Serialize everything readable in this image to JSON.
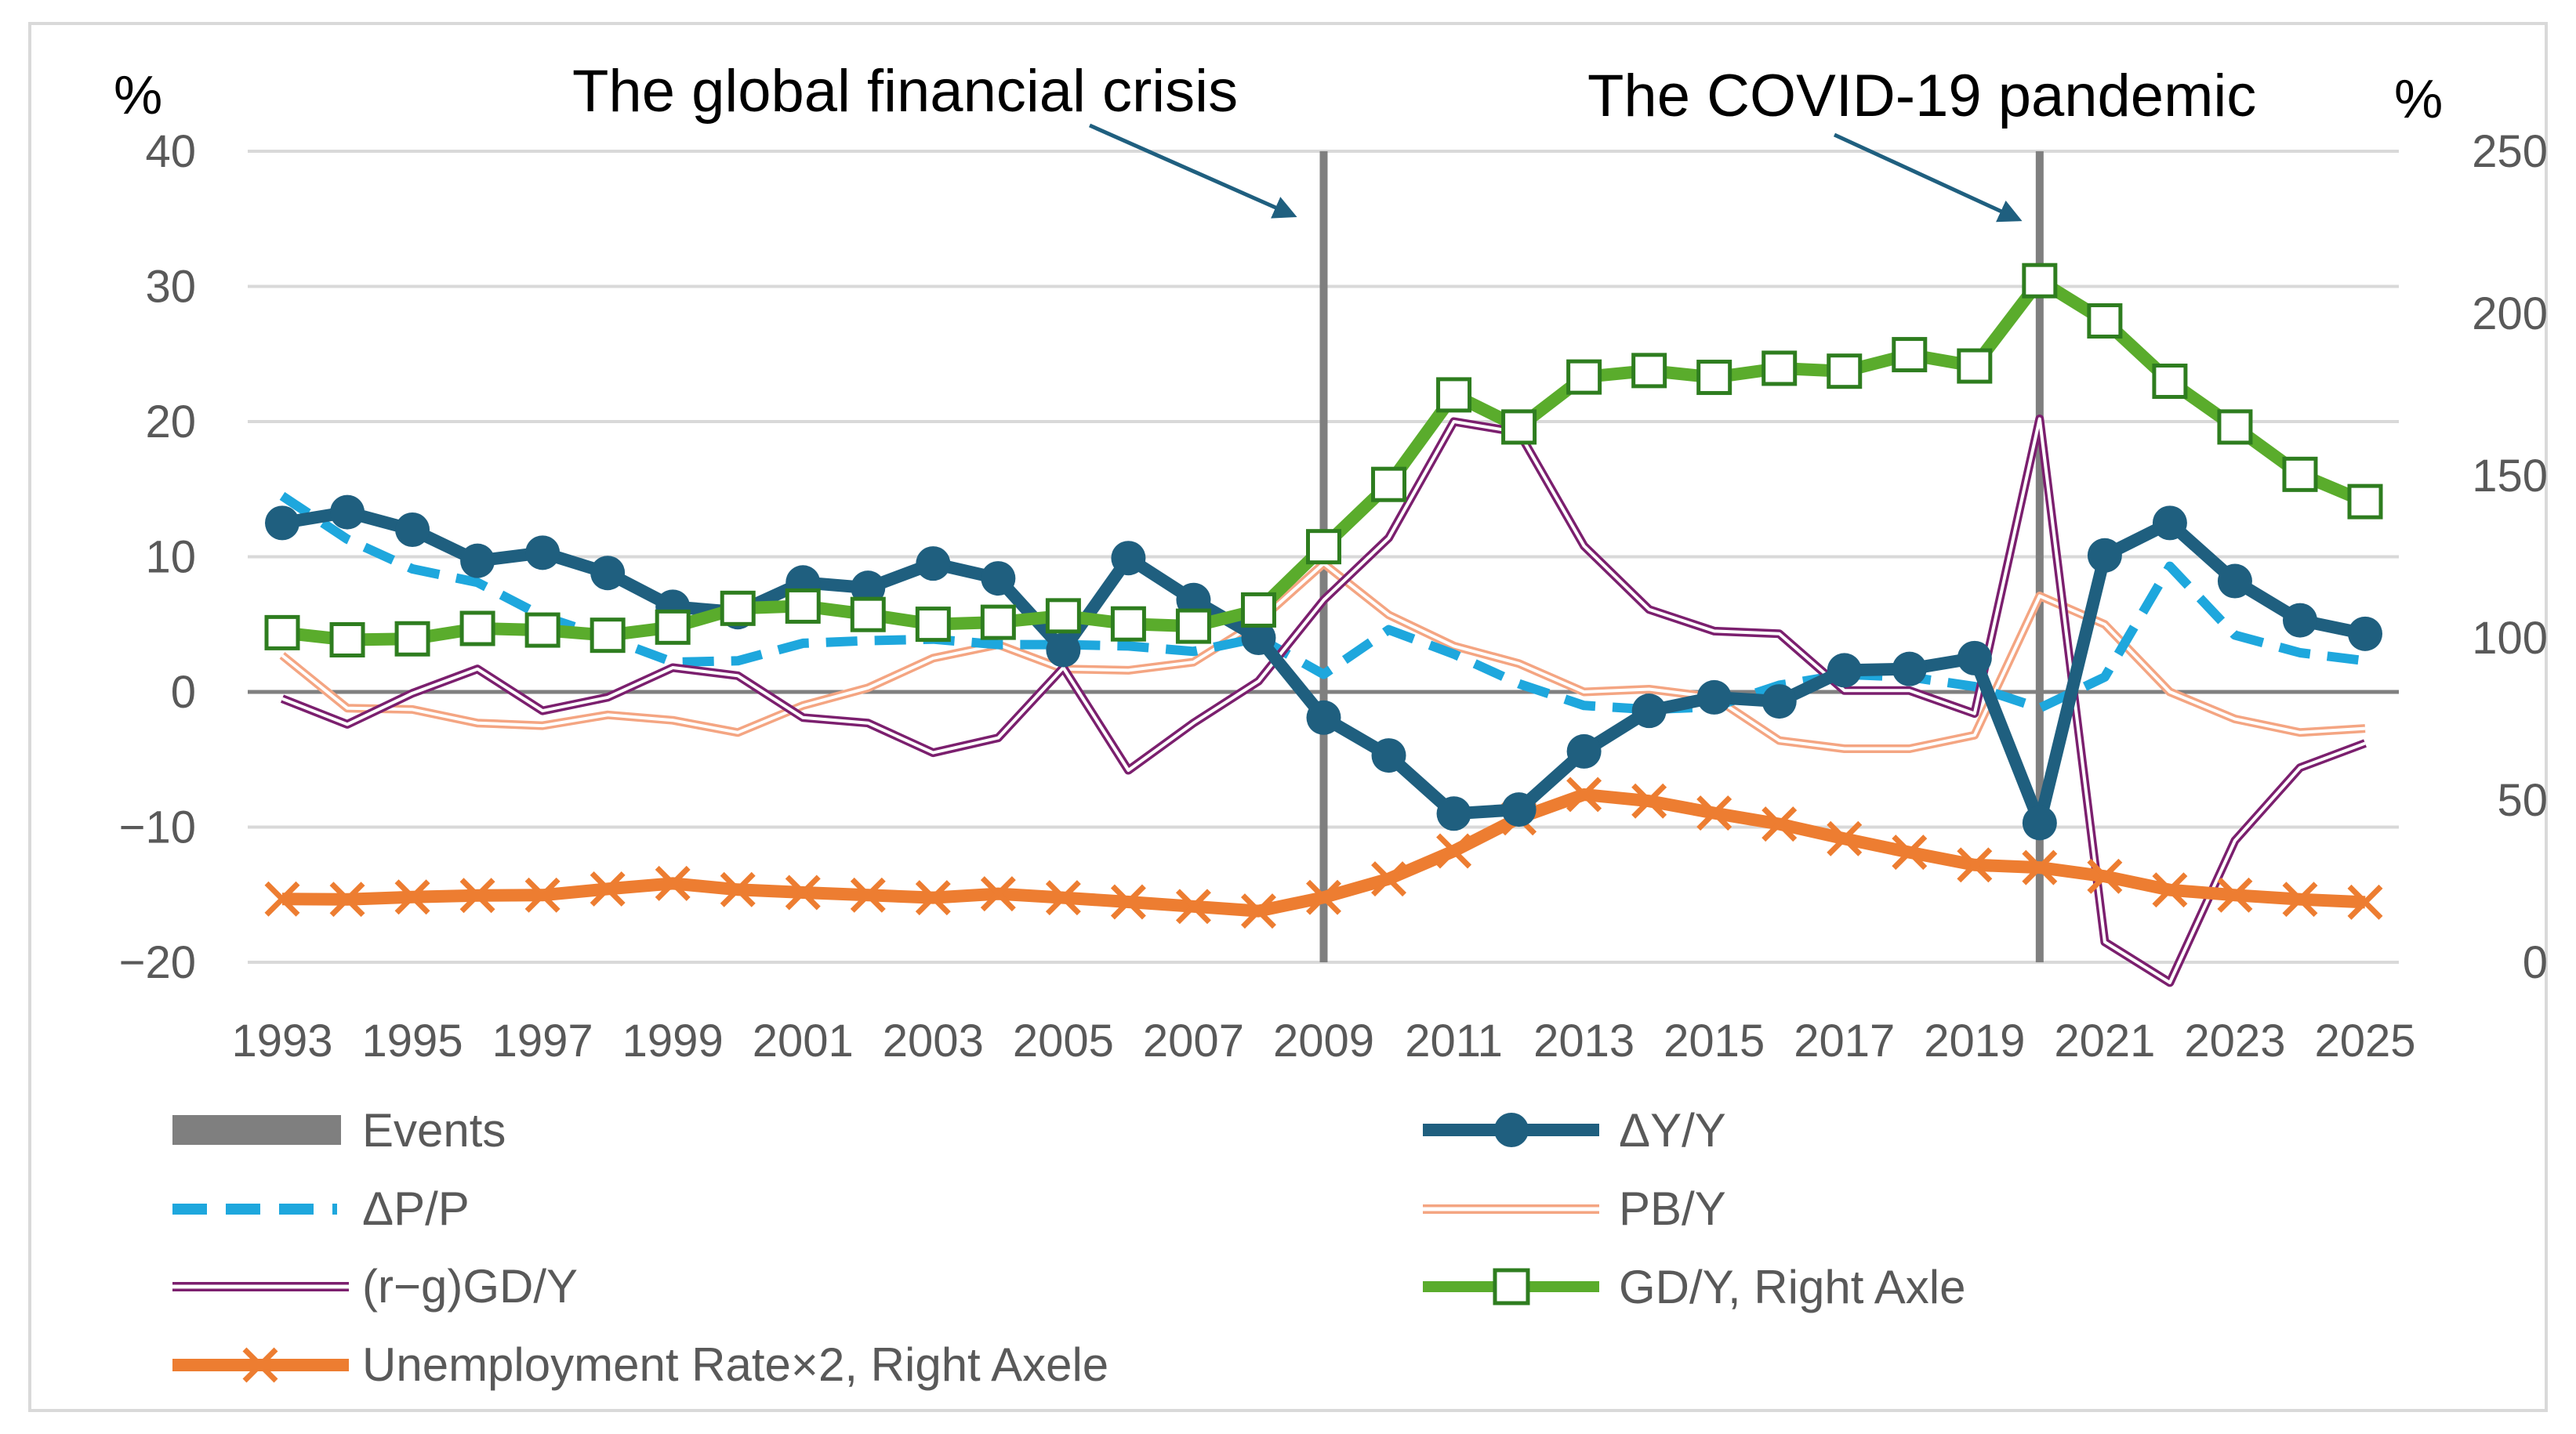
{
  "chart_data": {
    "type": "line",
    "title": "",
    "left_axis": {
      "unit": "%",
      "min": -20,
      "max": 40,
      "ticks": [
        -20,
        -10,
        0,
        10,
        20,
        30,
        40
      ]
    },
    "right_axis": {
      "unit": "%",
      "min": 0,
      "max": 250,
      "ticks": [
        0,
        50,
        100,
        150,
        200,
        250
      ]
    },
    "x": [
      1993,
      1994,
      1995,
      1996,
      1997,
      1998,
      1999,
      2000,
      2001,
      2002,
      2003,
      2004,
      2005,
      2006,
      2007,
      2008,
      2009,
      2010,
      2011,
      2012,
      2013,
      2014,
      2015,
      2016,
      2017,
      2018,
      2019,
      2020,
      2021,
      2022,
      2023,
      2024,
      2025
    ],
    "x_tick_labels": [
      "1993",
      "1995",
      "1997",
      "1999",
      "2001",
      "2003",
      "2005",
      "2007",
      "2009",
      "2011",
      "2013",
      "2015",
      "2017",
      "2019",
      "2021",
      "2023",
      "2025"
    ],
    "events": [
      {
        "year": 2009,
        "label": "The global financial crisis"
      },
      {
        "year": 2020,
        "label": "The COVID-19 pandemic"
      }
    ],
    "series": [
      {
        "key": "events",
        "name": "Events"
      },
      {
        "key": "dy",
        "name": "ΔY/Y",
        "axis": "left",
        "color": "#1f5f7f",
        "values": [
          12.5,
          13.3,
          12.0,
          9.7,
          10.3,
          8.8,
          6.3,
          5.9,
          8.1,
          7.7,
          9.5,
          8.4,
          3.1,
          9.9,
          6.8,
          4.0,
          -1.9,
          -4.7,
          -9.0,
          -8.7,
          -4.4,
          -1.4,
          -0.4,
          -0.7,
          1.6,
          1.7,
          2.5,
          -9.7,
          10.1,
          12.5,
          8.2,
          5.3,
          4.3
        ]
      },
      {
        "key": "dp",
        "name": "ΔP/P",
        "axis": "left",
        "color": "#1ea7dd",
        "values": [
          14.5,
          11.3,
          9.1,
          8.1,
          5.6,
          4.0,
          2.2,
          2.3,
          3.6,
          3.8,
          3.9,
          3.5,
          3.5,
          3.4,
          3.0,
          4.0,
          1.3,
          4.6,
          2.8,
          0.6,
          -1.0,
          -1.3,
          -1.1,
          0.5,
          1.3,
          1.1,
          0.4,
          -1.2,
          1.1,
          9.3,
          4.2,
          2.9,
          2.3
        ]
      },
      {
        "key": "pb",
        "name": "PB/Y",
        "axis": "left",
        "color": "#f4a582",
        "values": [
          2.7,
          -1.2,
          -1.3,
          -2.3,
          -2.5,
          -1.7,
          -2.1,
          -3.0,
          -1.0,
          0.3,
          2.5,
          3.5,
          1.7,
          1.6,
          2.2,
          5.2,
          9.5,
          5.7,
          3.4,
          2.1,
          0.0,
          0.2,
          -0.4,
          -3.6,
          -4.2,
          -4.2,
          -3.2,
          7.1,
          5.0,
          0.0,
          -2.0,
          -3.0,
          -2.7
        ]
      },
      {
        "key": "rg",
        "name": "(r−g)GD/Y",
        "axis": "left",
        "color": "#7b1f6e",
        "values": [
          -0.5,
          -2.4,
          -0.1,
          1.7,
          -1.4,
          -0.4,
          1.8,
          1.2,
          -1.9,
          -2.3,
          -4.5,
          -3.4,
          1.8,
          -5.8,
          -2.3,
          0.8,
          6.8,
          11.4,
          20.0,
          19.2,
          10.8,
          6.1,
          4.5,
          4.3,
          0.1,
          0.1,
          -1.6,
          20.2,
          -18.5,
          -21.5,
          -11.0,
          -5.6,
          -3.8
        ]
      },
      {
        "key": "gd",
        "name": "GD/Y, Right Axle",
        "axis": "right",
        "color": "#5aac2c",
        "values": [
          101.6,
          99.4,
          99.7,
          102.9,
          102.4,
          100.8,
          103.3,
          109.1,
          109.8,
          107.2,
          104.2,
          104.8,
          106.8,
          104.3,
          103.6,
          108.6,
          128.1,
          147.3,
          174.9,
          165.0,
          180.4,
          182.4,
          180.3,
          183.1,
          182.2,
          187.3,
          183.8,
          210.1,
          197.7,
          179.1,
          165.0,
          150.4,
          142.0
        ]
      },
      {
        "key": "un",
        "name": "Unemployment Rate×2, Right Axele",
        "axis": "right",
        "color": "#ed7d31",
        "values": [
          19.5,
          19.4,
          20.1,
          20.6,
          20.7,
          22.6,
          24.3,
          22.4,
          21.5,
          20.7,
          19.9,
          21.1,
          19.9,
          18.6,
          17.2,
          15.8,
          20.0,
          25.7,
          34.3,
          44.5,
          51.7,
          49.7,
          46.0,
          42.6,
          38.1,
          33.9,
          30.0,
          29.2,
          26.5,
          22.3,
          20.7,
          19.4,
          18.5
        ]
      }
    ]
  }
}
